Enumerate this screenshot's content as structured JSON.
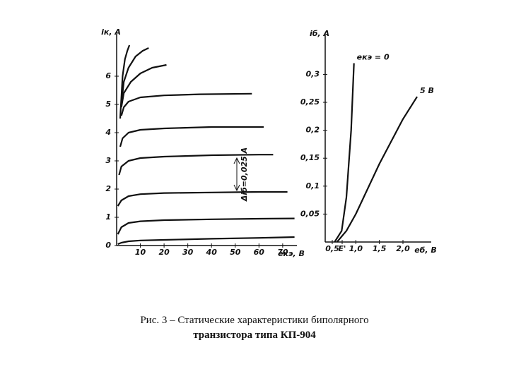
{
  "chart_data": [
    {
      "type": "line",
      "y_label": "iк, А",
      "x_label": "eкэ, В",
      "annotation": "Δiб=0,025 А",
      "xlim": [
        0,
        76
      ],
      "ylim": [
        0,
        7.5
      ],
      "xticks": [
        10,
        20,
        30,
        40,
        50,
        60,
        70
      ],
      "yticks": [
        0,
        1,
        2,
        3,
        4,
        5,
        6
      ],
      "color": "#111111",
      "series": [
        {
          "x": [
            0.5,
            2,
            5,
            10,
            20,
            40,
            60,
            75
          ],
          "values": [
            0.05,
            0.1,
            0.15,
            0.18,
            0.2,
            0.24,
            0.27,
            0.3
          ]
        },
        {
          "x": [
            0.5,
            2,
            5,
            10,
            20,
            40,
            60,
            75
          ],
          "values": [
            0.4,
            0.65,
            0.8,
            0.86,
            0.9,
            0.93,
            0.95,
            0.96
          ]
        },
        {
          "x": [
            0.5,
            2,
            5,
            10,
            20,
            40,
            60,
            72
          ],
          "values": [
            1.4,
            1.6,
            1.75,
            1.82,
            1.86,
            1.88,
            1.9,
            1.9
          ]
        },
        {
          "x": [
            1,
            2,
            5,
            10,
            20,
            40,
            60,
            66
          ],
          "values": [
            2.5,
            2.8,
            3.0,
            3.1,
            3.15,
            3.2,
            3.22,
            3.22
          ]
        },
        {
          "x": [
            1.5,
            2.5,
            5,
            10,
            20,
            40,
            62
          ],
          "values": [
            3.5,
            3.8,
            4.0,
            4.1,
            4.15,
            4.2,
            4.2
          ]
        },
        {
          "x": [
            2,
            3,
            5,
            10,
            20,
            35,
            57
          ],
          "values": [
            4.6,
            4.9,
            5.1,
            5.25,
            5.32,
            5.36,
            5.38
          ]
        },
        {
          "x": [
            2,
            3,
            6,
            10,
            15,
            21
          ],
          "values": [
            4.9,
            5.4,
            5.8,
            6.1,
            6.3,
            6.4
          ]
        },
        {
          "x": [
            2,
            3,
            5,
            8,
            11,
            13.5
          ],
          "values": [
            5.0,
            5.8,
            6.3,
            6.7,
            6.9,
            7.0
          ]
        },
        {
          "x": [
            1.5,
            2.5,
            3.5,
            4.5,
            5.4
          ],
          "values": [
            4.5,
            6.0,
            6.6,
            6.9,
            7.1
          ]
        }
      ]
    },
    {
      "type": "line",
      "y_label": "iб, А",
      "x_label": "eб, В",
      "xlim": [
        0.35,
        2.6
      ],
      "ylim": [
        0,
        0.37
      ],
      "xticks": [
        {
          "value": 0.5,
          "label": "0,5"
        },
        {
          "value": 0.71,
          "label": "E'"
        },
        {
          "value": 1.0,
          "label": "1,0"
        },
        {
          "value": 1.5,
          "label": "1,5"
        },
        {
          "value": 2.0,
          "label": "2,0"
        }
      ],
      "yticks": [
        {
          "value": 0.05,
          "label": "0,05"
        },
        {
          "value": 0.1,
          "label": "0,1"
        },
        {
          "value": 0.15,
          "label": "0,15"
        },
        {
          "value": 0.2,
          "label": "0,2"
        },
        {
          "value": 0.25,
          "label": "0,25"
        },
        {
          "value": 0.3,
          "label": "0,3"
        }
      ],
      "color": "#111111",
      "series": [
        {
          "name": "eкэ = 0",
          "x": [
            0.55,
            0.7,
            0.8,
            0.9,
            0.96
          ],
          "values": [
            0,
            0.02,
            0.08,
            0.2,
            0.32
          ]
        },
        {
          "name": "5 В",
          "x": [
            0.6,
            0.8,
            1.0,
            1.5,
            2.0,
            2.3
          ],
          "values": [
            0,
            0.02,
            0.05,
            0.14,
            0.22,
            0.26
          ]
        }
      ]
    }
  ],
  "caption": [
    "Рис. 3 – Статические характеристики биполярного",
    "транзистора типа КП-904"
  ]
}
